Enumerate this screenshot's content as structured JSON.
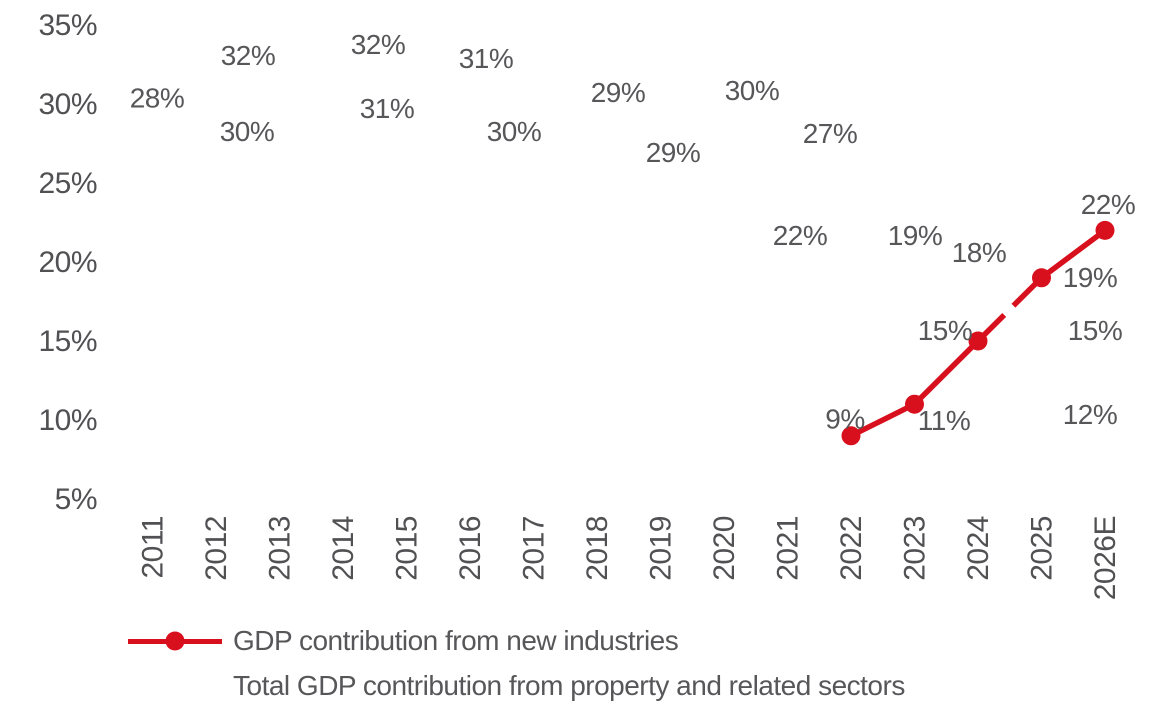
{
  "chart_data": {
    "type": "line",
    "title": "",
    "xlabel": "",
    "ylabel": "",
    "categories": [
      "2011",
      "2012",
      "2013",
      "2014",
      "2015",
      "2016",
      "2017",
      "2018",
      "2019",
      "2020",
      "2021",
      "2022",
      "2023",
      "2024",
      "2025",
      "2026E"
    ],
    "ylim": [
      5,
      35
    ],
    "y_ticks": [
      35,
      30,
      25,
      20,
      15,
      10,
      5
    ],
    "y_tick_suffix": "%",
    "grid": false,
    "axes_lines_visible": false,
    "legend_position": "bottom-left",
    "axis_text_color": "#515154",
    "label_text_color": "#57575a",
    "series": [
      {
        "name": "GDP contribution from new industries",
        "color": "#d8101e",
        "marker": "circle",
        "line_visible": true,
        "values": [
          null,
          null,
          null,
          null,
          null,
          null,
          null,
          null,
          null,
          null,
          null,
          9,
          11,
          15,
          19,
          22
        ],
        "data_labels": [
          null,
          null,
          null,
          null,
          null,
          null,
          null,
          null,
          null,
          null,
          null,
          "9%",
          "11%",
          "15%",
          "19%",
          "22%"
        ],
        "label_offsets": [
          null,
          null,
          null,
          null,
          null,
          null,
          null,
          null,
          null,
          null,
          null,
          [
            -6,
            -17.5
          ],
          [
            29.5,
            16
          ],
          [
            -33,
            -11
          ],
          [
            48.5,
            -1
          ],
          [
            3,
            -26.4
          ]
        ],
        "dashed_segments": [
          [
            "2024",
            "2025"
          ]
        ]
      },
      {
        "name": "Total GDP contribution from property and related sectors",
        "color": "#ffffff",
        "marker": "none",
        "line_visible": false,
        "values": [
          28,
          32,
          30,
          32,
          31,
          31,
          30,
          29,
          29,
          30,
          27,
          22,
          19,
          18,
          15,
          12
        ],
        "data_labels": [
          "28%",
          "32%",
          "30%",
          "32%",
          "31%",
          "31%",
          "30%",
          "29%",
          "29%",
          "30%",
          "27%",
          "22%",
          "19%",
          "18%",
          "15%",
          "12%"
        ],
        "label_offsets": [
          [
            4.5,
            -38
          ],
          [
            32,
            -17.4
          ],
          [
            -32.5,
            27
          ],
          [
            35,
            -28.4
          ],
          [
            -19.5,
            19.8
          ],
          [
            16,
            -30.2
          ],
          [
            -19.5,
            27
          ],
          [
            21,
            -27.8
          ],
          [
            12.5,
            32.2
          ],
          [
            28,
            -14
          ],
          [
            42.5,
            -18.4
          ],
          [
            -51,
            4.6
          ],
          [
            0.5,
            -42.8
          ],
          [
            1,
            -41.6
          ],
          [
            53.5,
            -11
          ],
          [
            -15,
            25.6
          ]
        ],
        "dashed_segments": []
      }
    ]
  },
  "legend": {
    "items": [
      {
        "label": "GDP contribution from new industries",
        "marker": "red-line-with-dot"
      },
      {
        "label": "Total GDP contribution from property and related sectors",
        "marker": "none"
      }
    ]
  }
}
